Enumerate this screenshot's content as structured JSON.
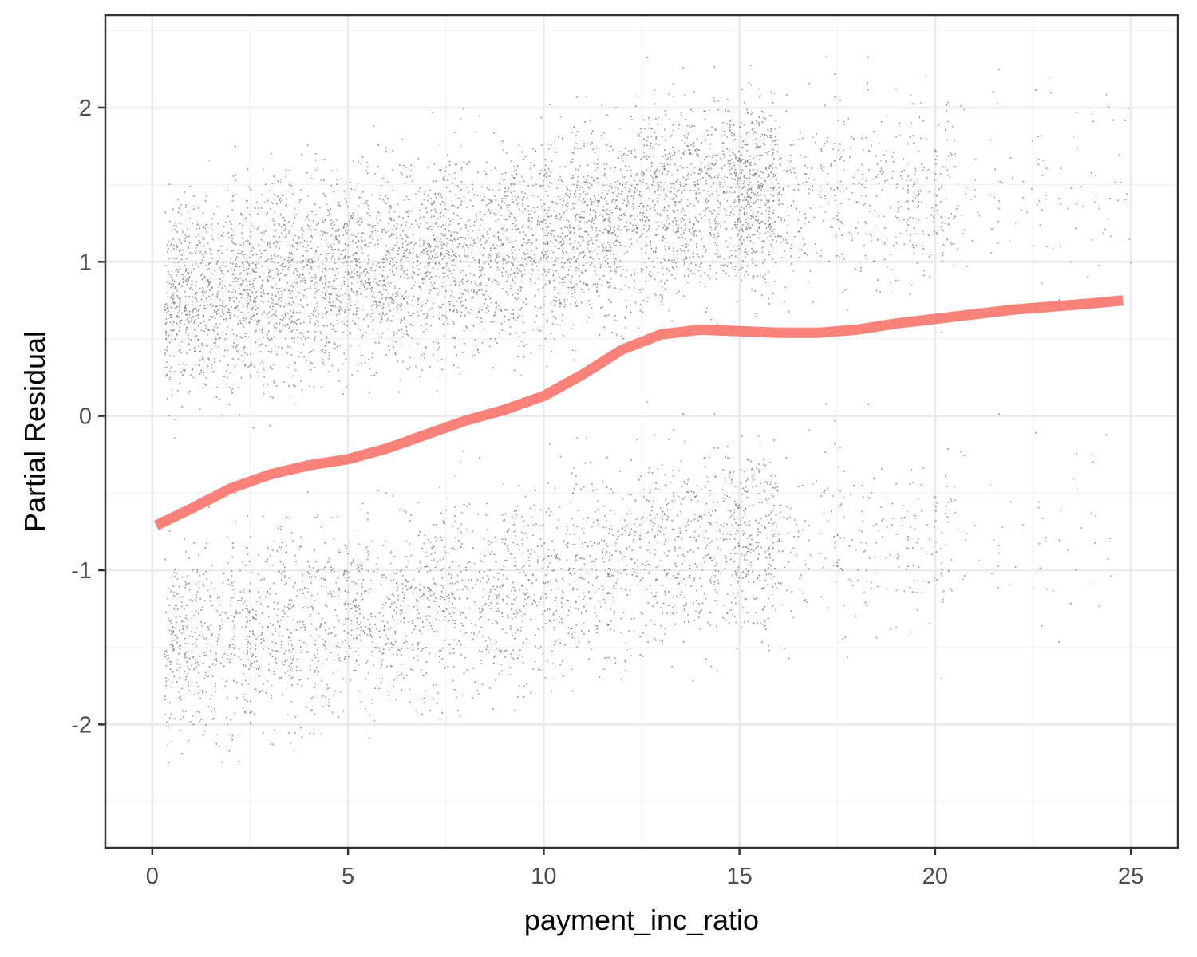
{
  "chart_data": {
    "type": "scatter",
    "title": "",
    "xlabel": "payment_inc_ratio",
    "ylabel": "Partial Residual",
    "xlim": [
      -1.2,
      26.2
    ],
    "ylim": [
      -2.8,
      2.6
    ],
    "x_ticks": [
      0,
      5,
      10,
      15,
      20,
      25
    ],
    "x_tick_labels": [
      "0",
      "5",
      "10",
      "15",
      "20",
      "25"
    ],
    "y_ticks": [
      -2,
      -1,
      0,
      1,
      2
    ],
    "y_tick_labels": [
      "-2",
      "-1",
      "0",
      "1",
      "2"
    ],
    "grid": true,
    "legend": "none",
    "series": [
      {
        "kind": "points",
        "color": "#000000",
        "description_clusters": [
          {
            "band": "upper",
            "x_range": [
              0.3,
              25
            ],
            "center_curve": [
              [
                0.5,
                0.75
              ],
              [
                5,
                0.95
              ],
              [
                10,
                1.15
              ],
              [
                14,
                1.45
              ],
              [
                20,
                1.45
              ],
              [
                25,
                1.5
              ]
            ],
            "spread": 0.42
          },
          {
            "band": "lower",
            "x_range": [
              0.1,
              24.5
            ],
            "center_curve": [
              [
                0.5,
                -1.5
              ],
              [
                5,
                -1.3
              ],
              [
                10,
                -1.05
              ],
              [
                14,
                -0.8
              ],
              [
                20,
                -0.8
              ],
              [
                25,
                -0.7
              ]
            ],
            "spread": 0.42
          }
        ]
      },
      {
        "kind": "smooth_line",
        "color": "#f8766d",
        "x": [
          0.1,
          1,
          2,
          3,
          4,
          5,
          6,
          7,
          8,
          9,
          10,
          11,
          12,
          13,
          14,
          15,
          16,
          17,
          18,
          19,
          20,
          21,
          22,
          23,
          24,
          24.8
        ],
        "y": [
          -0.71,
          -0.6,
          -0.47,
          -0.38,
          -0.32,
          -0.28,
          -0.21,
          -0.12,
          -0.03,
          0.04,
          0.13,
          0.27,
          0.43,
          0.53,
          0.56,
          0.55,
          0.54,
          0.54,
          0.56,
          0.6,
          0.63,
          0.66,
          0.69,
          0.71,
          0.73,
          0.75
        ]
      }
    ]
  }
}
